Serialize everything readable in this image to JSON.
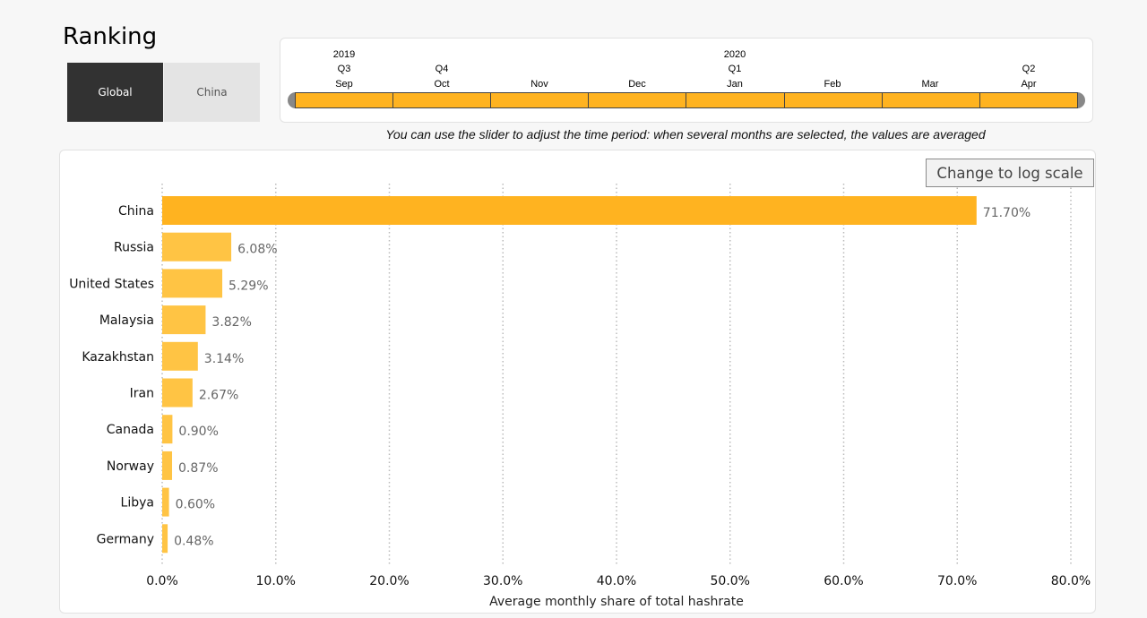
{
  "page": {
    "title": "Ranking",
    "region_tabs": [
      {
        "label": "Global",
        "active": true
      },
      {
        "label": "China",
        "active": false
      }
    ]
  },
  "timeline": {
    "year_labels": [
      "2019",
      "2020"
    ],
    "quarter_labels": [
      "Q3",
      "Q4",
      "Q1",
      "Q2"
    ],
    "month_labels": [
      "Sep",
      "Oct",
      "Nov",
      "Dec",
      "Jan",
      "Feb",
      "Mar",
      "Apr"
    ],
    "hint": "You can use the slider to adjust the time period: when several months are selected, the values are averaged"
  },
  "controls": {
    "log_scale_label": "Change to log scale"
  },
  "colors": {
    "bar_top": "#ffb320",
    "bar": "#ffc444",
    "active_tab": "#323232",
    "inactive_tab": "#e4e4e4"
  },
  "chart_data": {
    "type": "bar",
    "orientation": "horizontal",
    "categories": [
      "China",
      "Russia",
      "United States",
      "Malaysia",
      "Kazakhstan",
      "Iran",
      "Canada",
      "Norway",
      "Libya",
      "Germany"
    ],
    "values": [
      71.7,
      6.08,
      5.29,
      3.82,
      3.14,
      2.67,
      0.9,
      0.87,
      0.6,
      0.48
    ],
    "value_labels": [
      "71.70%",
      "6.08%",
      "5.29%",
      "3.82%",
      "3.14%",
      "2.67%",
      "0.90%",
      "0.87%",
      "0.60%",
      "0.48%"
    ],
    "x_ticks": [
      "0.0%",
      "10.0%",
      "20.0%",
      "30.0%",
      "40.0%",
      "50.0%",
      "60.0%",
      "70.0%",
      "80.0%"
    ],
    "xlim": [
      0,
      80
    ],
    "xlabel": "Average monthly share of total hashrate",
    "grid": "vertical dotted"
  }
}
